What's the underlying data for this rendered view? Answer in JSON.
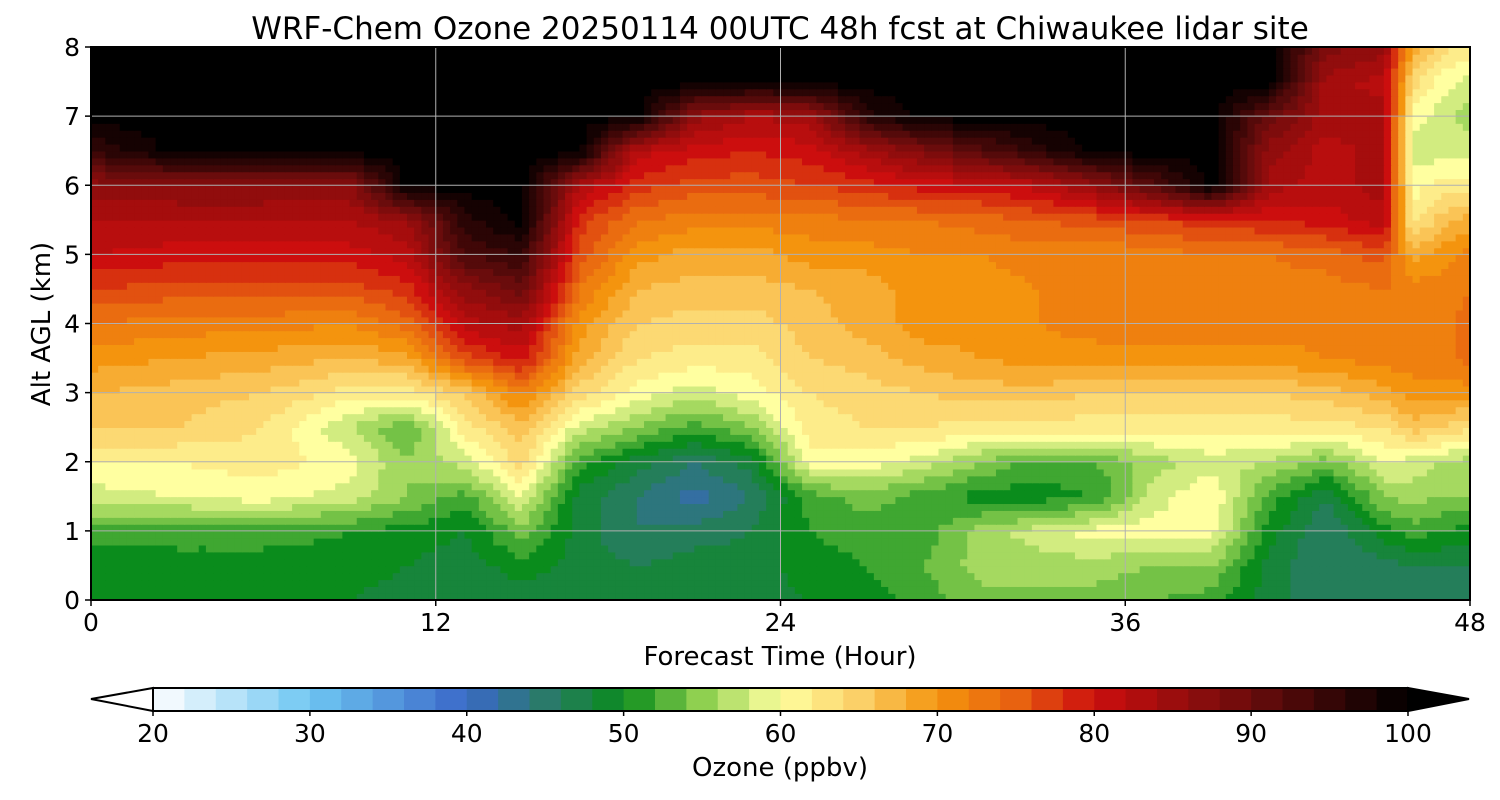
{
  "chart_data": {
    "type": "heatmap",
    "subtype": "filled-contour time-height cross-section",
    "title": "WRF-Chem Ozone  20250114 00UTC 48h fcst at Chiwaukee lidar site",
    "xlabel": "Forecast Time (Hour)",
    "ylabel": "Alt AGL (km)",
    "xlim": [
      0,
      48
    ],
    "ylim": [
      0,
      8
    ],
    "xticks": [
      0,
      12,
      24,
      36,
      48
    ],
    "yticks": [
      0,
      1,
      2,
      3,
      4,
      5,
      6,
      7,
      8
    ],
    "grid": true,
    "colorbar": {
      "label": "Ozone  (ppbv)",
      "orientation": "horizontal",
      "placement": "bottom",
      "range": [
        20,
        100
      ],
      "extend": "both",
      "ticks": [
        20,
        30,
        40,
        50,
        60,
        70,
        80,
        90,
        100
      ],
      "stops": [
        {
          "v": 20,
          "c": "#ffffff"
        },
        {
          "v": 30,
          "c": "#6ec6f2"
        },
        {
          "v": 40,
          "c": "#3a68c8"
        },
        {
          "v": 45,
          "c": "#2a7a6a"
        },
        {
          "v": 50,
          "c": "#0a8c1c"
        },
        {
          "v": 55,
          "c": "#8fd050"
        },
        {
          "v": 60,
          "c": "#ffffa0"
        },
        {
          "v": 65,
          "c": "#fbd068"
        },
        {
          "v": 70,
          "c": "#f4940e"
        },
        {
          "v": 75,
          "c": "#e86210"
        },
        {
          "v": 80,
          "c": "#cc0e0e"
        },
        {
          "v": 90,
          "c": "#6a0c0c"
        },
        {
          "v": 100,
          "c": "#000000"
        }
      ]
    },
    "x": [
      0,
      3,
      6,
      9,
      11,
      13,
      15,
      17,
      19,
      21,
      23,
      25,
      27,
      29,
      31,
      33,
      35,
      37,
      39,
      41,
      43,
      45,
      46,
      47,
      48
    ],
    "y": [
      0,
      0.5,
      1,
      1.5,
      2,
      2.5,
      3,
      3.5,
      4,
      4.5,
      5,
      5.5,
      6,
      6.5,
      7,
      7.5,
      8
    ],
    "z": [
      [
        50,
        50,
        50,
        49,
        48,
        47,
        48,
        48,
        48,
        48,
        48,
        49,
        50,
        52,
        54,
        54,
        54,
        53,
        52,
        48,
        45,
        46,
        46,
        46,
        46
      ],
      [
        49,
        50,
        50,
        50,
        49,
        48,
        50,
        48,
        47,
        48,
        48,
        50,
        51,
        53,
        56,
        56,
        56,
        55,
        55,
        48,
        45,
        46,
        47,
        47,
        47
      ],
      [
        52,
        52,
        52,
        51,
        50,
        49,
        54,
        48,
        45,
        46,
        47,
        51,
        52,
        52,
        56,
        58,
        60,
        60,
        60,
        50,
        45,
        50,
        52,
        51,
        50
      ],
      [
        58,
        59,
        60,
        58,
        55,
        52,
        59,
        48,
        45,
        42,
        45,
        52,
        54,
        52,
        50,
        50,
        51,
        58,
        61,
        52,
        47,
        55,
        56,
        55,
        55
      ],
      [
        61,
        61,
        62,
        60,
        55,
        58,
        64,
        52,
        48,
        45,
        48,
        60,
        60,
        58,
        55,
        52,
        53,
        56,
        58,
        57,
        54,
        59,
        58,
        57,
        56
      ],
      [
        65,
        65,
        63,
        57,
        53,
        62,
        66,
        58,
        55,
        52,
        55,
        62,
        63,
        63,
        62,
        62,
        62,
        62,
        62,
        62,
        62,
        63,
        66,
        65,
        63
      ],
      [
        67,
        66,
        65,
        62,
        62,
        65,
        72,
        64,
        60,
        58,
        60,
        63,
        64,
        65,
        66,
        66,
        65,
        65,
        65,
        65,
        66,
        68,
        70,
        70,
        70
      ],
      [
        70,
        69,
        68,
        67,
        68,
        76,
        80,
        68,
        63,
        62,
        62,
        65,
        66,
        68,
        69,
        70,
        70,
        70,
        70,
        70,
        71,
        72,
        72,
        72,
        74
      ],
      [
        73,
        72,
        72,
        71,
        74,
        82,
        84,
        70,
        65,
        64,
        64,
        66,
        68,
        70,
        70,
        71,
        72,
        72,
        72,
        72,
        72,
        72,
        72,
        72,
        74
      ],
      [
        77,
        76,
        76,
        76,
        78,
        86,
        90,
        73,
        67,
        66,
        66,
        67,
        68,
        70,
        70,
        71,
        71,
        71,
        72,
        72,
        72,
        73,
        72,
        72,
        73
      ],
      [
        81,
        80,
        80,
        80,
        82,
        93,
        95,
        76,
        70,
        68,
        68,
        70,
        70,
        71,
        71,
        72,
        71,
        72,
        73,
        73,
        74,
        76,
        68,
        70,
        72
      ],
      [
        83,
        83,
        83,
        83,
        85,
        96,
        100,
        78,
        73,
        72,
        72,
        72,
        73,
        73,
        74,
        75,
        76,
        77,
        78,
        79,
        80,
        82,
        62,
        66,
        68
      ],
      [
        86,
        87,
        87,
        86,
        100,
        100,
        100,
        83,
        78,
        76,
        76,
        77,
        78,
        80,
        80,
        82,
        86,
        92,
        100,
        84,
        82,
        84,
        60,
        62,
        62
      ],
      [
        95,
        100,
        100,
        100,
        100,
        100,
        100,
        100,
        82,
        80,
        79,
        80,
        84,
        88,
        92,
        96,
        100,
        100,
        100,
        86,
        82,
        84,
        58,
        58,
        58
      ],
      [
        100,
        100,
        100,
        100,
        100,
        100,
        100,
        100,
        100,
        86,
        83,
        84,
        96,
        100,
        100,
        100,
        100,
        100,
        100,
        90,
        84,
        84,
        60,
        58,
        56
      ],
      [
        100,
        100,
        100,
        100,
        100,
        100,
        100,
        100,
        100,
        100,
        100,
        100,
        100,
        100,
        100,
        100,
        100,
        100,
        100,
        100,
        84,
        82,
        64,
        60,
        58
      ],
      [
        100,
        100,
        100,
        100,
        100,
        100,
        100,
        100,
        100,
        100,
        100,
        100,
        100,
        100,
        100,
        100,
        100,
        100,
        100,
        100,
        88,
        86,
        68,
        64,
        62
      ]
    ]
  }
}
